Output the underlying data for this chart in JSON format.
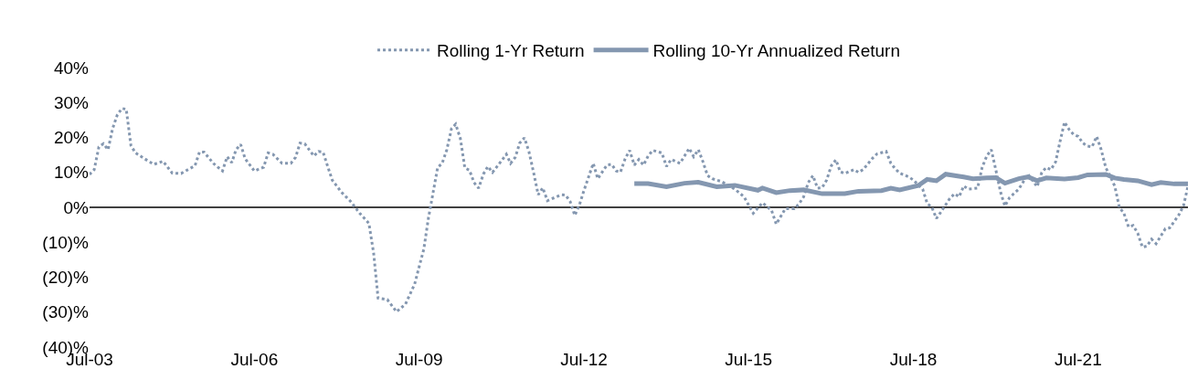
{
  "chart_data": {
    "type": "line",
    "legend": "top",
    "grid": false,
    "xlim": [
      "2003-07",
      "2023-07"
    ],
    "xticks": [
      {
        "value": "2003-07",
        "label": "Jul-03"
      },
      {
        "value": "2006-07",
        "label": "Jul-06"
      },
      {
        "value": "2009-07",
        "label": "Jul-09"
      },
      {
        "value": "2012-07",
        "label": "Jul-12"
      },
      {
        "value": "2015-07",
        "label": "Jul-15"
      },
      {
        "value": "2018-07",
        "label": "Jul-18"
      },
      {
        "value": "2021-07",
        "label": "Jul-21"
      }
    ],
    "ylim": [
      -40,
      40
    ],
    "yticks": [
      {
        "value": 40,
        "label": "40%"
      },
      {
        "value": 30,
        "label": "30%"
      },
      {
        "value": 20,
        "label": "20%"
      },
      {
        "value": 10,
        "label": "10%"
      },
      {
        "value": 0,
        "label": "0%"
      },
      {
        "value": -10,
        "label": "(10)%"
      },
      {
        "value": -20,
        "label": "(20)%"
      },
      {
        "value": -30,
        "label": "(30)%"
      },
      {
        "value": -40,
        "label": "(40)%"
      }
    ],
    "ref_lines": [
      {
        "axis": "y",
        "value": 0,
        "color": "#000000"
      }
    ],
    "series": [
      {
        "name": "Rolling 1-Yr Return",
        "color": "#8497b0",
        "line_style": "dotted",
        "x": [
          "2003-07",
          "2003-08",
          "2003-09",
          "2003-10",
          "2003-11",
          "2003-12",
          "2004-01",
          "2004-02",
          "2004-03",
          "2004-04",
          "2004-05",
          "2004-07",
          "2004-09",
          "2004-11",
          "2005-01",
          "2005-03",
          "2005-06",
          "2005-07",
          "2005-08",
          "2005-10",
          "2005-12",
          "2006-01",
          "2006-02",
          "2006-03",
          "2006-04",
          "2006-05",
          "2006-07",
          "2006-09",
          "2006-10",
          "2006-11",
          "2007-01",
          "2007-03",
          "2007-04",
          "2007-05",
          "2007-06",
          "2007-08",
          "2007-09",
          "2007-10",
          "2007-11",
          "2007-12",
          "2008-02",
          "2008-04",
          "2008-06",
          "2008-08",
          "2008-09",
          "2008-10",
          "2008-12",
          "2009-02",
          "2009-04",
          "2009-06",
          "2009-07",
          "2009-08",
          "2009-09",
          "2009-10",
          "2009-11",
          "2009-12",
          "2010-01",
          "2010-02",
          "2010-03",
          "2010-04",
          "2010-05",
          "2010-06",
          "2010-07",
          "2010-08",
          "2010-09",
          "2010-10",
          "2010-11",
          "2011-01",
          "2011-02",
          "2011-03",
          "2011-04",
          "2011-05",
          "2011-06",
          "2011-07",
          "2011-08",
          "2011-09",
          "2011-10",
          "2011-11",
          "2012-02",
          "2012-03",
          "2012-04",
          "2012-05",
          "2012-06",
          "2012-07",
          "2012-08",
          "2012-09",
          "2012-10",
          "2012-12",
          "2013-01",
          "2013-02",
          "2013-03",
          "2013-04",
          "2013-05",
          "2013-06",
          "2013-07",
          "2013-08",
          "2013-09",
          "2013-10",
          "2013-12",
          "2014-01",
          "2014-02",
          "2014-04",
          "2014-05",
          "2014-06",
          "2014-07",
          "2014-08",
          "2014-09",
          "2014-10",
          "2014-11",
          "2015-01",
          "2015-04",
          "2015-06",
          "2015-08",
          "2015-10",
          "2015-12",
          "2016-01",
          "2016-03",
          "2016-05",
          "2016-06",
          "2016-07",
          "2016-08",
          "2016-09",
          "2016-10",
          "2016-11",
          "2016-12",
          "2017-01",
          "2017-02",
          "2017-03",
          "2017-04",
          "2017-06",
          "2017-07",
          "2017-08",
          "2017-10",
          "2017-11",
          "2018-01",
          "2018-02",
          "2018-03",
          "2018-04",
          "2018-06",
          "2018-07",
          "2018-09",
          "2018-10",
          "2018-11",
          "2018-12",
          "2019-01",
          "2019-03",
          "2019-04",
          "2019-05",
          "2019-06",
          "2019-07",
          "2019-09",
          "2019-10",
          "2019-11",
          "2019-12",
          "2020-01",
          "2020-02",
          "2020-03",
          "2020-04",
          "2020-06",
          "2020-08",
          "2020-10",
          "2020-11",
          "2020-12",
          "2021-01",
          "2021-02",
          "2021-03",
          "2021-04",
          "2021-05",
          "2021-06",
          "2021-07",
          "2021-08",
          "2021-09",
          "2021-10",
          "2021-11",
          "2021-12",
          "2022-01",
          "2022-02",
          "2022-03",
          "2022-04",
          "2022-05",
          "2022-06",
          "2022-07",
          "2022-08",
          "2022-09",
          "2022-10",
          "2022-11",
          "2022-12",
          "2023-02",
          "2023-03",
          "2023-05",
          "2023-06",
          "2023-07"
        ],
        "values": [
          9.4,
          10.8,
          17.3,
          18.2,
          16.5,
          22.5,
          26.4,
          28.3,
          28.1,
          17.7,
          15.6,
          13.9,
          12.3,
          13.2,
          9.8,
          9.7,
          11.9,
          15.8,
          15.8,
          12.6,
          10.4,
          14.5,
          12.8,
          16.5,
          18.0,
          13.9,
          10.4,
          11.5,
          15.6,
          15.2,
          12.6,
          12.6,
          14.3,
          18.4,
          18.2,
          14.7,
          16.0,
          15.8,
          11.7,
          7.8,
          4.3,
          1.7,
          -1.7,
          -4.6,
          -13.0,
          -26.0,
          -26.4,
          -29.9,
          -27.7,
          -22.0,
          -17.0,
          -12.0,
          -3.0,
          4.0,
          11.4,
          12.6,
          16.5,
          22.5,
          23.8,
          19.7,
          11.3,
          10.6,
          7.1,
          5.5,
          9.5,
          11.7,
          10.0,
          13.4,
          15.2,
          12.6,
          14.3,
          18.4,
          19.9,
          16.0,
          10.0,
          3.6,
          5.6,
          1.9,
          3.6,
          3.5,
          1.6,
          -2.3,
          0.7,
          4.8,
          8.7,
          12.6,
          8.2,
          12.1,
          12.3,
          10.4,
          10.1,
          13.9,
          16.3,
          12.1,
          13.7,
          12.1,
          14.7,
          16.3,
          15.6,
          11.7,
          13.7,
          12.6,
          14.7,
          16.9,
          14.5,
          16.5,
          13.0,
          9.1,
          8.2,
          7.4,
          5.2,
          3.0,
          -1.7,
          1.3,
          -0.9,
          -4.8,
          -0.4,
          -0.4,
          1.0,
          3.0,
          7.1,
          9.1,
          5.5,
          5.6,
          7.8,
          11.9,
          13.6,
          10.2,
          9.7,
          10.8,
          10.0,
          10.8,
          14.0,
          15.3,
          16.0,
          12.6,
          11.1,
          9.8,
          8.7,
          7.8,
          5.2,
          1.1,
          0,
          -3.2,
          -1.3,
          2.6,
          3.9,
          3.0,
          6.1,
          5.2,
          5.5,
          11.4,
          14.7,
          16.5,
          10.6,
          4.3,
          0.4,
          2.8,
          5.2,
          9.5,
          5.9,
          10.0,
          11.4,
          10.8,
          13.0,
          18.6,
          24.4,
          22.3,
          20.8,
          20.3,
          18.4,
          17.5,
          17.3,
          20.3,
          16.5,
          11.3,
          8.7,
          6.1,
          0,
          -1.7,
          -5.6,
          -5.2,
          -7.4,
          -11.4,
          -11.1,
          -9.1,
          -10.4,
          -6.1,
          -5.9,
          -2.2,
          0.4,
          6.0
        ]
      },
      {
        "name": "Rolling 10-Yr Annualized Return",
        "color": "#8497b0",
        "line_style": "solid",
        "x": [
          "2013-06",
          "2013-09",
          "2014-01",
          "2014-05",
          "2014-08",
          "2014-12",
          "2015-04",
          "2015-09",
          "2015-10",
          "2016-01",
          "2016-04",
          "2016-07",
          "2016-11",
          "2017-04",
          "2017-07",
          "2017-12",
          "2018-02",
          "2018-04",
          "2018-08",
          "2018-10",
          "2018-12",
          "2019-02",
          "2019-05",
          "2019-06",
          "2019-08",
          "2019-11",
          "2020-01",
          "2020-03",
          "2020-06",
          "2020-08",
          "2020-10",
          "2020-12",
          "2021-04",
          "2021-07",
          "2021-09",
          "2022-01",
          "2022-03",
          "2022-05",
          "2022-08",
          "2022-11",
          "2023-01",
          "2023-04",
          "2023-07"
        ],
        "values": [
          6.8,
          6.8,
          5.9,
          6.9,
          7.2,
          5.9,
          6.3,
          4.9,
          5.5,
          4.2,
          4.8,
          5.0,
          3.9,
          3.9,
          4.6,
          4.8,
          5.5,
          5.0,
          6.2,
          8.0,
          7.6,
          9.5,
          8.9,
          8.7,
          8.2,
          8.4,
          8.5,
          6.9,
          8.2,
          8.7,
          7.6,
          8.4,
          8.1,
          8.5,
          9.3,
          9.4,
          8.4,
          8.0,
          7.6,
          6.5,
          7.1,
          6.7,
          6.7
        ]
      }
    ]
  }
}
